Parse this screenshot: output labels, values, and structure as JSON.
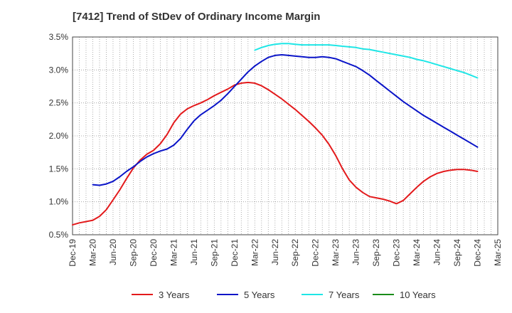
{
  "chart_data": {
    "type": "line",
    "title": "[7412]  Trend of StDev of Ordinary Income Margin",
    "xlabel": "",
    "ylabel": "",
    "x_ticks": [
      "Dec-19",
      "Mar-20",
      "Jun-20",
      "Sep-20",
      "Dec-20",
      "Mar-21",
      "Jun-21",
      "Sep-21",
      "Dec-21",
      "Mar-22",
      "Jun-22",
      "Sep-22",
      "Dec-22",
      "Mar-23",
      "Jun-23",
      "Sep-23",
      "Dec-23",
      "Mar-24",
      "Jun-24",
      "Sep-24",
      "Dec-24",
      "Mar-25"
    ],
    "y_ticks": [
      "0.5%",
      "1.0%",
      "1.5%",
      "2.0%",
      "2.5%",
      "3.0%",
      "3.5%"
    ],
    "ylim": [
      0.5,
      3.5
    ],
    "grid": true,
    "legend_position": "bottom",
    "series": [
      {
        "name": "3 Years",
        "color": "#e31a1c",
        "x": [
          "Dec-19",
          "Jan-20",
          "Feb-20",
          "Mar-20",
          "Apr-20",
          "May-20",
          "Jun-20",
          "Jul-20",
          "Aug-20",
          "Sep-20",
          "Oct-20",
          "Nov-20",
          "Dec-20",
          "Jan-21",
          "Feb-21",
          "Mar-21",
          "Apr-21",
          "May-21",
          "Jun-21",
          "Jul-21",
          "Aug-21",
          "Sep-21",
          "Oct-21",
          "Nov-21",
          "Dec-21",
          "Jan-22",
          "Feb-22",
          "Mar-22",
          "Apr-22",
          "May-22",
          "Jun-22",
          "Jul-22",
          "Aug-22",
          "Sep-22",
          "Oct-22",
          "Nov-22",
          "Dec-22",
          "Jan-23",
          "Feb-23",
          "Mar-23",
          "Apr-23",
          "May-23",
          "Jun-23",
          "Jul-23",
          "Aug-23",
          "Sep-23",
          "Oct-23",
          "Nov-23",
          "Dec-23",
          "Jan-24",
          "Feb-24",
          "Mar-24",
          "Apr-24",
          "May-24",
          "Jun-24",
          "Jul-24",
          "Aug-24",
          "Sep-24",
          "Oct-24",
          "Nov-24",
          "Dec-24"
        ],
        "values": [
          0.65,
          0.68,
          0.7,
          0.72,
          0.78,
          0.88,
          1.03,
          1.18,
          1.35,
          1.51,
          1.63,
          1.72,
          1.78,
          1.88,
          2.02,
          2.2,
          2.33,
          2.41,
          2.46,
          2.5,
          2.55,
          2.61,
          2.66,
          2.71,
          2.77,
          2.8,
          2.81,
          2.8,
          2.76,
          2.7,
          2.63,
          2.56,
          2.48,
          2.4,
          2.31,
          2.22,
          2.12,
          2.01,
          1.87,
          1.7,
          1.5,
          1.33,
          1.22,
          1.14,
          1.08,
          1.06,
          1.04,
          1.01,
          0.97,
          1.02,
          1.12,
          1.22,
          1.31,
          1.38,
          1.43,
          1.46,
          1.48,
          1.49,
          1.49,
          1.48,
          1.46
        ]
      },
      {
        "name": "5 Years",
        "color": "#0a14c8",
        "x": [
          "Mar-20",
          "Apr-20",
          "May-20",
          "Jun-20",
          "Jul-20",
          "Aug-20",
          "Sep-20",
          "Oct-20",
          "Nov-20",
          "Dec-20",
          "Jan-21",
          "Feb-21",
          "Mar-21",
          "Apr-21",
          "May-21",
          "Jun-21",
          "Jul-21",
          "Aug-21",
          "Sep-21",
          "Oct-21",
          "Nov-21",
          "Dec-21",
          "Jan-22",
          "Feb-22",
          "Mar-22",
          "Apr-22",
          "May-22",
          "Jun-22",
          "Jul-22",
          "Aug-22",
          "Sep-22",
          "Oct-22",
          "Nov-22",
          "Dec-22",
          "Jan-23",
          "Feb-23",
          "Mar-23",
          "Apr-23",
          "May-23",
          "Jun-23",
          "Jul-23",
          "Aug-23",
          "Sep-23",
          "Oct-23",
          "Nov-23",
          "Dec-23",
          "Jan-24",
          "Feb-24",
          "Mar-24",
          "Apr-24",
          "May-24",
          "Jun-24",
          "Jul-24",
          "Aug-24",
          "Sep-24",
          "Oct-24",
          "Nov-24",
          "Dec-24"
        ],
        "values": [
          1.26,
          1.25,
          1.27,
          1.31,
          1.38,
          1.46,
          1.53,
          1.61,
          1.68,
          1.73,
          1.77,
          1.8,
          1.86,
          1.96,
          2.1,
          2.23,
          2.32,
          2.39,
          2.46,
          2.54,
          2.64,
          2.75,
          2.86,
          2.97,
          3.06,
          3.13,
          3.19,
          3.22,
          3.23,
          3.22,
          3.21,
          3.2,
          3.19,
          3.19,
          3.2,
          3.19,
          3.17,
          3.13,
          3.09,
          3.05,
          2.99,
          2.92,
          2.84,
          2.76,
          2.68,
          2.6,
          2.52,
          2.45,
          2.38,
          2.31,
          2.25,
          2.19,
          2.13,
          2.07,
          2.01,
          1.95,
          1.89,
          1.83
        ]
      },
      {
        "name": "7 Years",
        "color": "#1ee6e6",
        "x": [
          "Mar-22",
          "Apr-22",
          "May-22",
          "Jun-22",
          "Jul-22",
          "Aug-22",
          "Sep-22",
          "Oct-22",
          "Nov-22",
          "Dec-22",
          "Jan-23",
          "Feb-23",
          "Mar-23",
          "Apr-23",
          "May-23",
          "Jun-23",
          "Jul-23",
          "Aug-23",
          "Sep-23",
          "Oct-23",
          "Nov-23",
          "Dec-23",
          "Jan-24",
          "Feb-24",
          "Mar-24",
          "Apr-24",
          "May-24",
          "Jun-24",
          "Jul-24",
          "Aug-24",
          "Sep-24",
          "Oct-24",
          "Nov-24",
          "Dec-24"
        ],
        "values": [
          3.3,
          3.34,
          3.37,
          3.39,
          3.4,
          3.4,
          3.39,
          3.38,
          3.38,
          3.38,
          3.38,
          3.38,
          3.37,
          3.36,
          3.35,
          3.34,
          3.32,
          3.31,
          3.29,
          3.27,
          3.25,
          3.23,
          3.21,
          3.19,
          3.16,
          3.14,
          3.11,
          3.08,
          3.05,
          3.02,
          2.99,
          2.96,
          2.92,
          2.88
        ]
      },
      {
        "name": "10 Years",
        "color": "#1a8c1a",
        "x": [],
        "values": []
      }
    ]
  }
}
